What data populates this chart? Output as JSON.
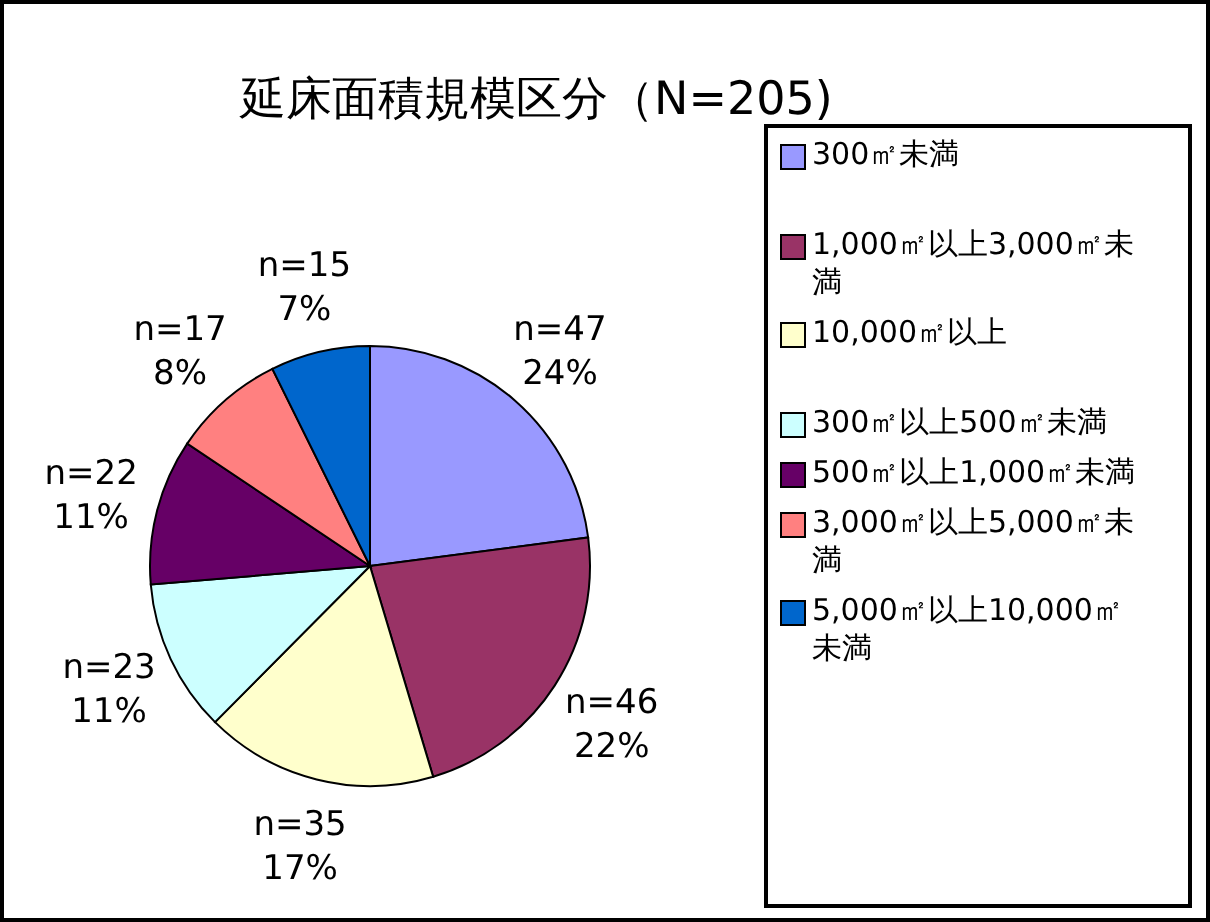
{
  "chart_data": {
    "type": "pie",
    "title": "延床面積規模区分（N=205)",
    "categories": [
      "300㎡未満",
      "1,000㎡以上3,000㎡未満",
      "10,000㎡以上",
      "300㎡以上500㎡未満",
      "500㎡以上1,000㎡未満",
      "3,000㎡以上5,000㎡未満",
      "5,000㎡以上10,000㎡未満"
    ],
    "values": [
      47,
      46,
      35,
      23,
      22,
      17,
      15
    ],
    "value_labels": [
      "n=47\n24%",
      "n=46\n22%",
      "n=35\n17%",
      "n=23\n11%",
      "n=22\n11%",
      "n=17\n8%",
      "n=15\n7%"
    ],
    "colors": [
      "#9999ff",
      "#993366",
      "#ffffcc",
      "#ccffff",
      "#660066",
      "#ff8080",
      "#0066cc"
    ],
    "legend": "right"
  }
}
